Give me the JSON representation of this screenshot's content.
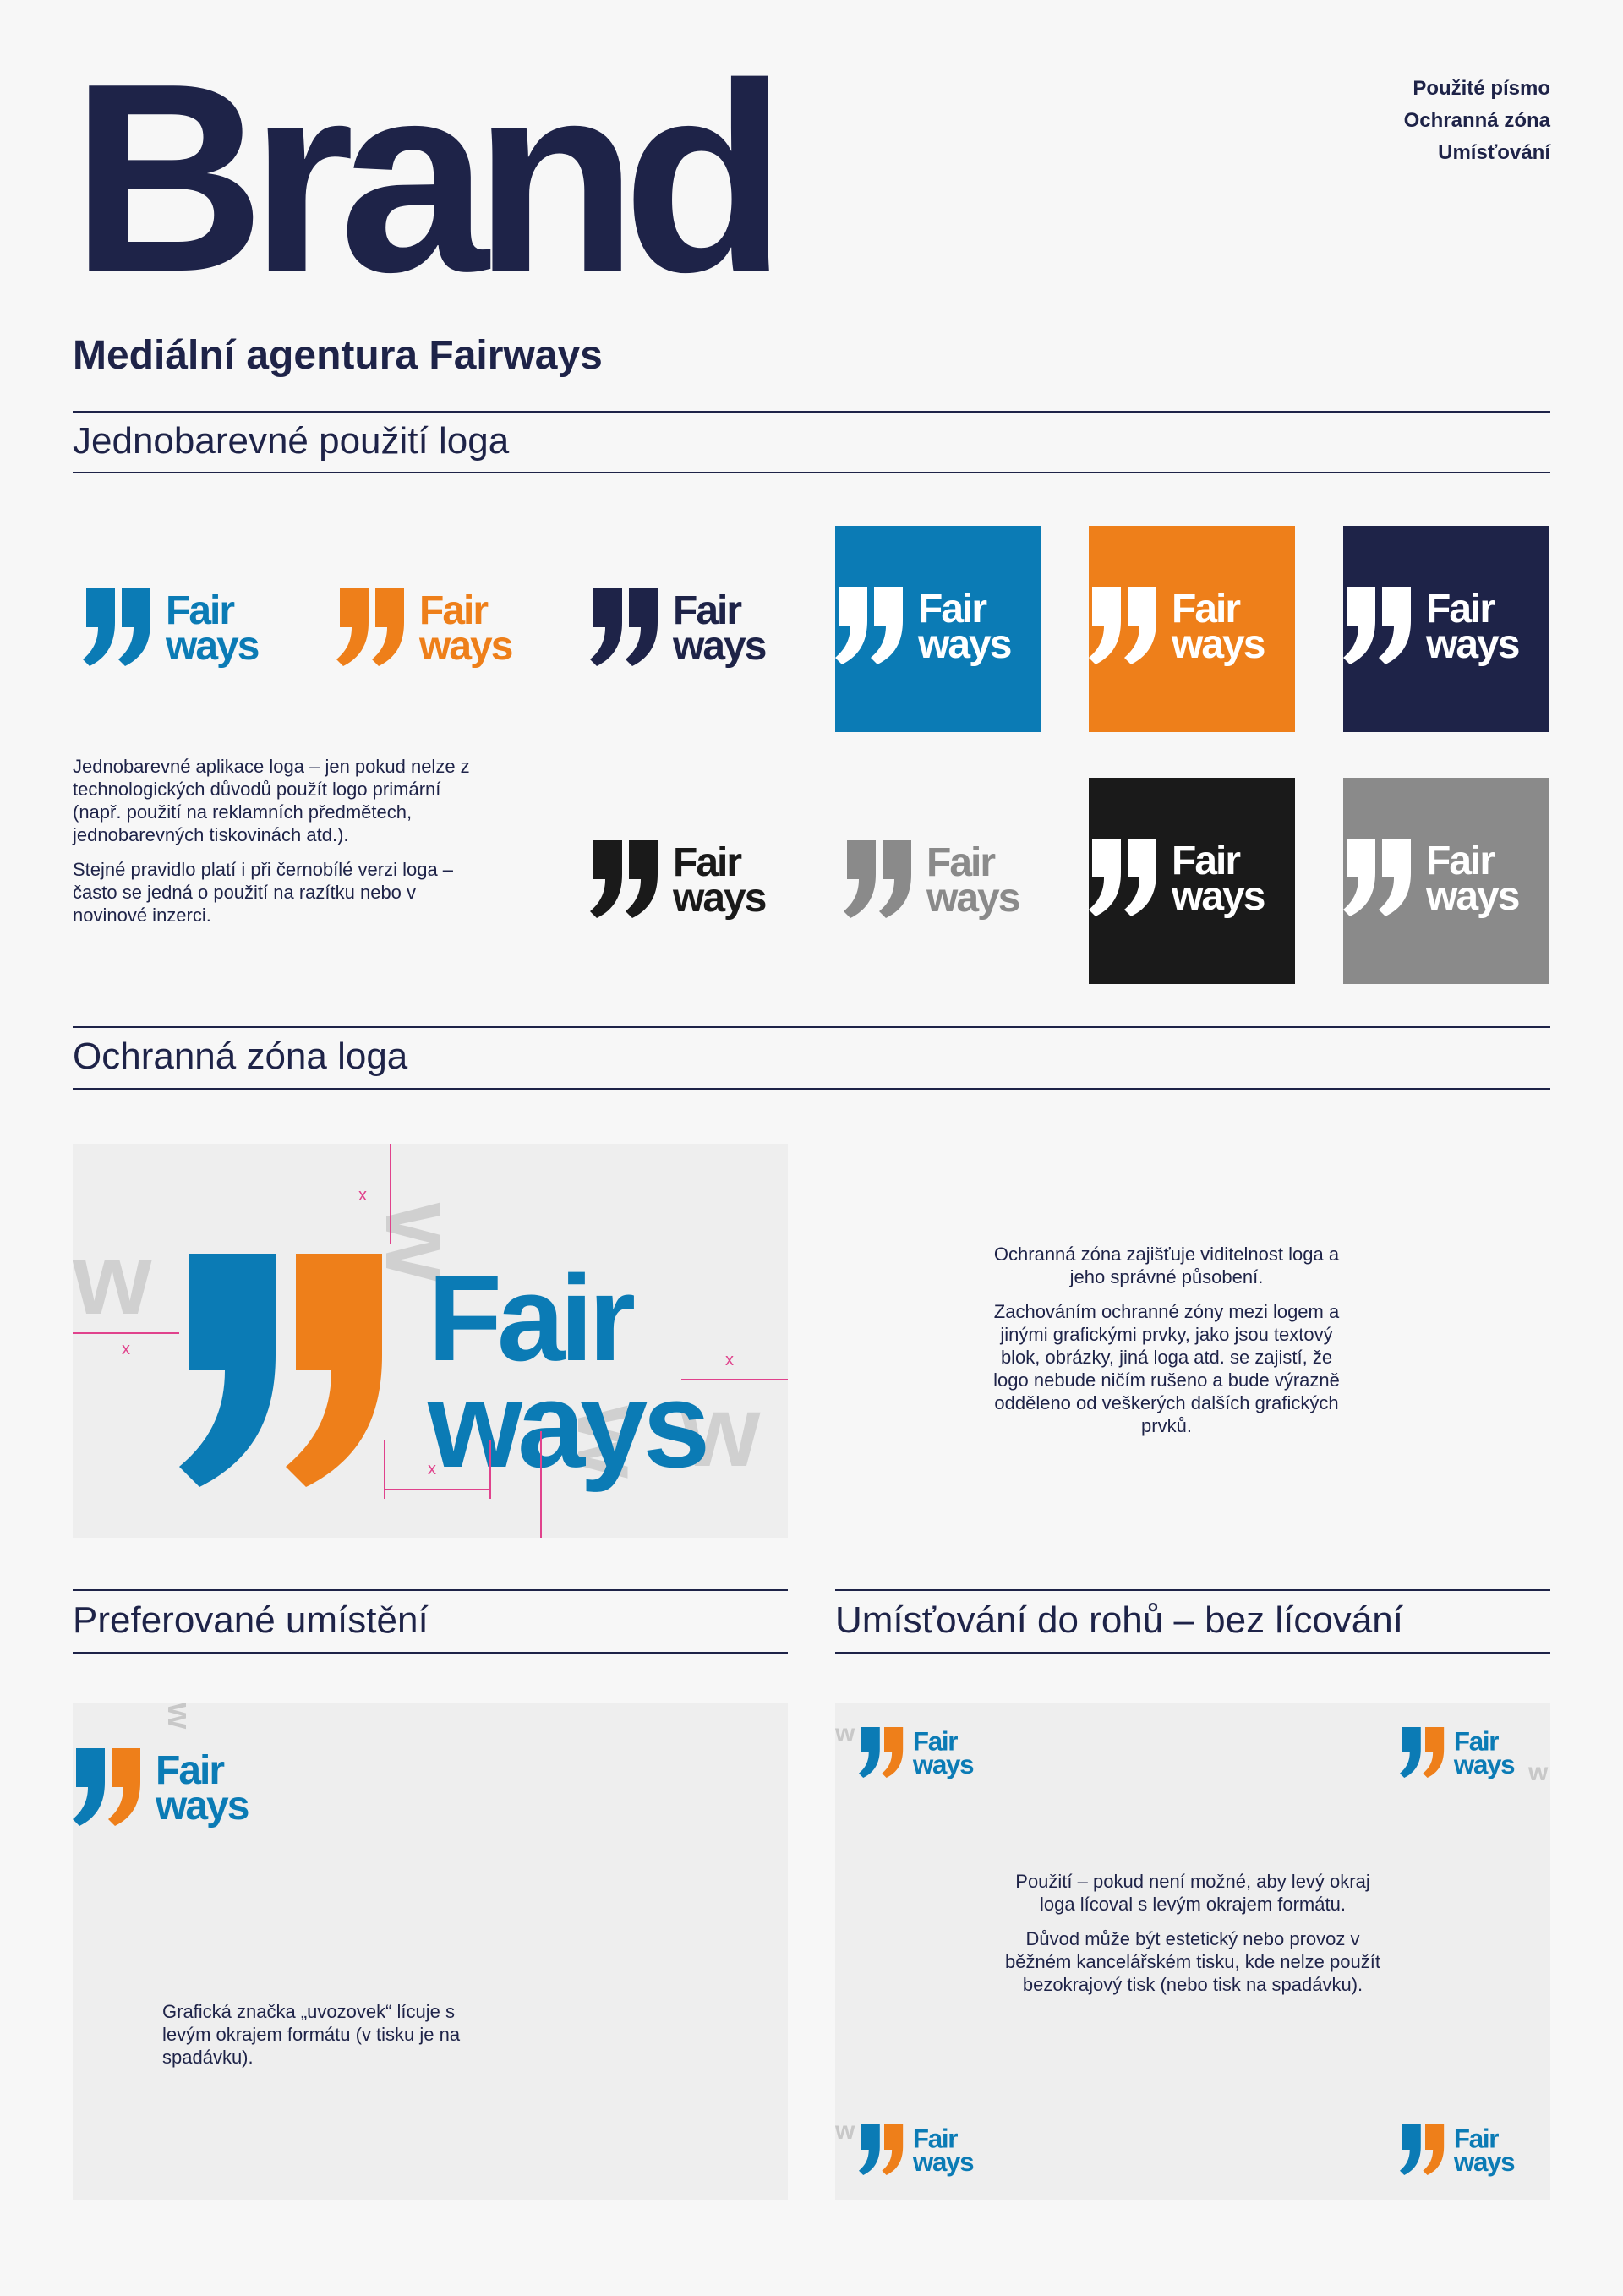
{
  "header": {
    "title": "Brand",
    "subtitle": "Mediální agentura Fairways",
    "nav": [
      "Použité písmo",
      "Ochranná zóna",
      "Umísťování"
    ]
  },
  "logo": {
    "word1": "Fair",
    "word2": "ways",
    "ghost_letter": "w"
  },
  "colors": {
    "navy": "#1e2348",
    "blue": "#0b7bb5",
    "orange": "#ee7f1a",
    "black": "#1a1a1a",
    "gray": "#8a8a8a",
    "panel": "#eeeeee",
    "pink": "#e0428c"
  },
  "sections": {
    "mono": {
      "title": "Jednobarevné použití loga",
      "para1": "Jednobarevné aplikace loga – jen pokud nelze z technologických důvodů použít logo primární (např. použití na reklamních předmětech, jednobarevných tiskovinách atd.).",
      "para2": "Stejné pravidlo platí i při černobílé verzi loga – často se jedná o použití na razítku nebo v novinové inzerci."
    },
    "zone": {
      "title": "Ochranná zóna loga",
      "marker": "x",
      "para1": "Ochranná zóna zajišťuje viditelnost loga a jeho správné působení.",
      "para2": "Zachováním ochranné zóny mezi logem a jinými grafickými prvky, jako jsou textový blok, obrázky, jiná loga atd. se zajistí, že logo nebude ničím rušeno a bude výrazně odděleno od veškerých dalších grafických prvků."
    },
    "preferred": {
      "title": "Preferované umístění",
      "para": "Grafická značka „uvozovek“ lícuje s levým okrajem formátu (v tisku je na spadávku)."
    },
    "corners": {
      "title": "Umísťování do rohů – bez lícování",
      "para1": "Použití – pokud není možné, aby levý okraj loga lícoval s levým okrajem formátu.",
      "para2": "Důvod může být estetický nebo provoz v běžném kancelářském tisku, kde nelze použít bezokrajový tisk (nebo tisk na spadávku)."
    }
  }
}
